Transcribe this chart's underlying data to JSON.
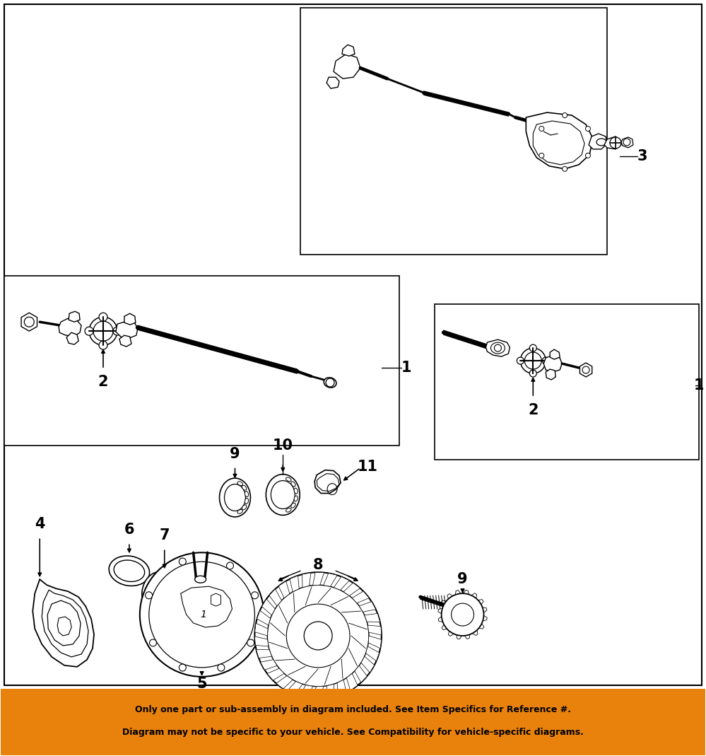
{
  "background_color": "#ffffff",
  "orange_bar_color": "#E8820C",
  "orange_bar_text_line1": "Only one part or sub-assembly in diagram included. See Item Specifics for Reference #.",
  "orange_bar_text_line2": "Diagram may not be specific to your vehicle. See Compatibility for vehicle-specific diagrams.",
  "orange_bar_text_color": "#000000",
  "figsize": [
    9.99,
    10.69
  ],
  "dpi": 100
}
